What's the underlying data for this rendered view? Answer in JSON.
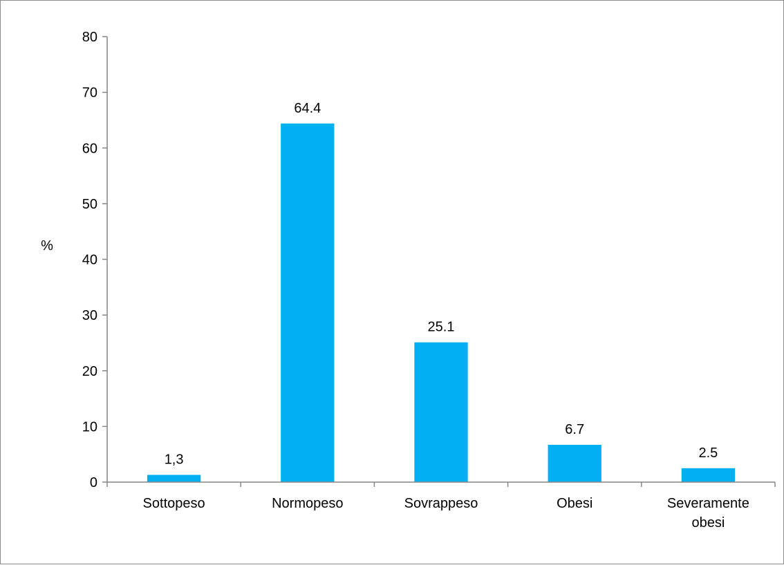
{
  "chart_data": {
    "type": "bar",
    "categories": [
      [
        "Sottopeso"
      ],
      [
        "Normopeso"
      ],
      [
        "Sovrappeso"
      ],
      [
        "Obesi"
      ],
      [
        "Severamente",
        "obesi"
      ]
    ],
    "values": [
      1.3,
      64.4,
      25.1,
      6.7,
      2.5
    ],
    "data_labels": [
      "1,3",
      "64.4",
      "25.1",
      "6.7",
      "2.5"
    ],
    "ylabel": "%",
    "xlabel": "",
    "title": "",
    "ylim": [
      0,
      80
    ],
    "yticks": [
      0,
      10,
      20,
      30,
      40,
      50,
      60,
      70,
      80
    ],
    "bar_color": "#00B0F0",
    "axis_color": "#868686",
    "grid": false,
    "legend": "none"
  }
}
